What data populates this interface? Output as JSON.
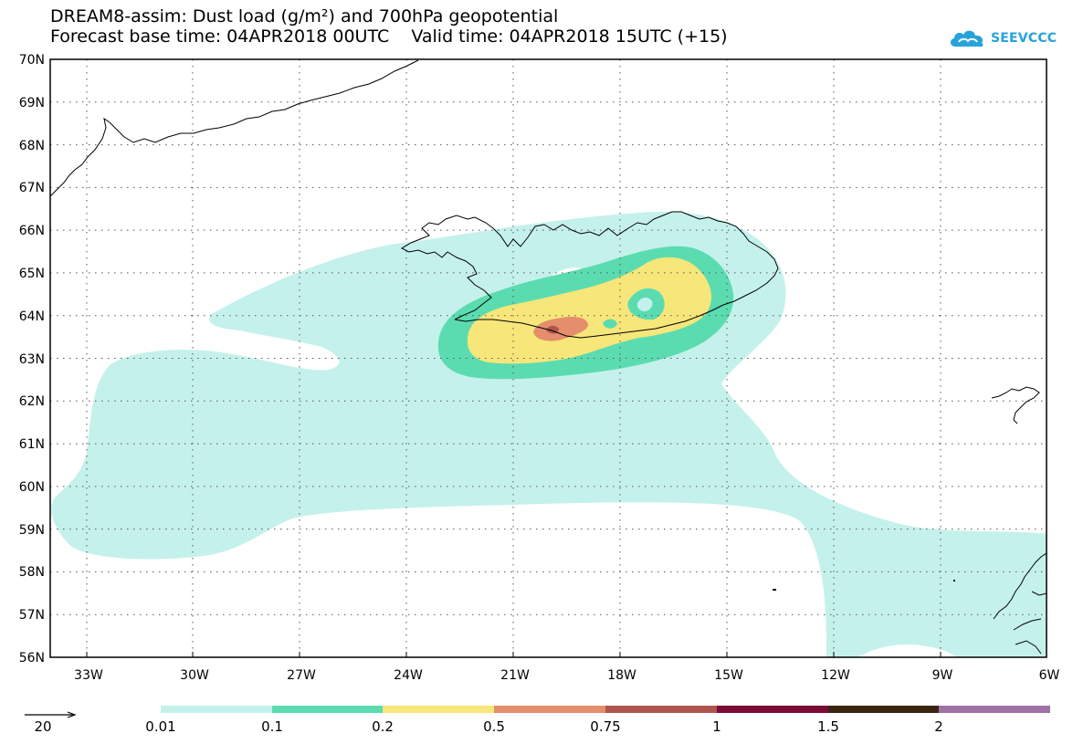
{
  "title_line1": "DREAM8-assim: Dust load (g/m²) and 700hPa geopotential",
  "title_line2": "Forecast base time: 04APR2018 00UTC    Valid time: 04APR2018 15UTC (+15)",
  "logo": {
    "icon": "cloud-logo-icon",
    "text": "SEEVCCC",
    "color": "#27a3dc"
  },
  "map": {
    "lat_labels": [
      "70N",
      "69N",
      "68N",
      "67N",
      "66N",
      "65N",
      "64N",
      "63N",
      "62N",
      "61N",
      "60N",
      "59N",
      "58N",
      "57N",
      "56N"
    ],
    "lon_labels": [
      "33W",
      "30W",
      "27W",
      "24W",
      "21W",
      "18W",
      "15W",
      "12W",
      "9W",
      "6W"
    ],
    "colors": {
      "c1": "#c5f1ec",
      "c2": "#5bdcb0",
      "c3": "#f7e67a",
      "c4": "#e58e6c",
      "c5": "#b0554e",
      "coast": "#000000"
    }
  },
  "vector_key": {
    "label": "20"
  },
  "legend": {
    "labels": [
      "0.01",
      "0.1",
      "0.2",
      "0.5",
      "0.75",
      "1",
      "1.5",
      "2"
    ],
    "colors": [
      "#c5f1ec",
      "#5bdcb0",
      "#f7e67a",
      "#e58e6c",
      "#b0554e",
      "#7d0a36",
      "#3b2510",
      "#9f72a5"
    ]
  }
}
